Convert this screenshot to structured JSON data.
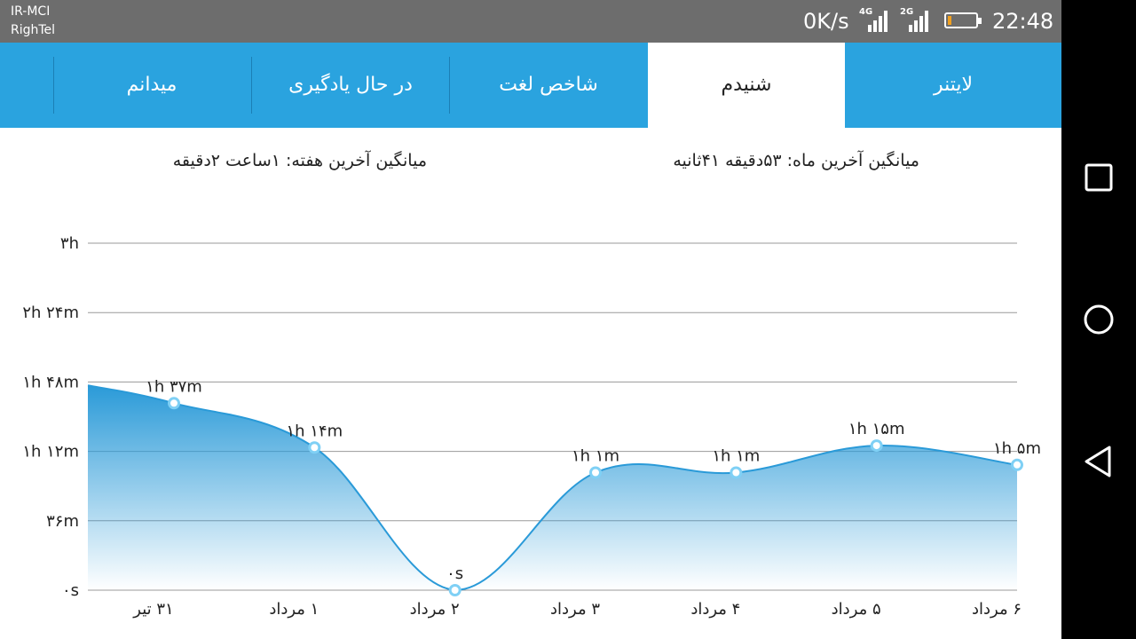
{
  "status_bar": {
    "carrier_1": "IR-MCI",
    "carrier_2": "RighTel",
    "network_speed": "0K/s",
    "signal_1_type": "4G",
    "signal_2_type": "2G",
    "battery_level": 0.12,
    "time": "22:48"
  },
  "tabs": [
    {
      "label": "لایتنر",
      "active": false
    },
    {
      "label": "شنیدم",
      "active": true
    },
    {
      "label": "شاخص لغت",
      "active": false
    },
    {
      "label": "در حال یادگیری",
      "active": false
    },
    {
      "label": "میدانم",
      "active": false
    }
  ],
  "averages": {
    "month": "میانگین آخرین ماه: ۵۳دقیقه  ۴۱ثانیه",
    "week": "میانگین آخرین هفته: ۱ساعت  ۲دقیقه"
  },
  "chart_data": {
    "type": "area",
    "categories": [
      "۳۱ تیر",
      "۱ مرداد",
      "۲ مرداد",
      "۳ مرداد",
      "۴ مرداد",
      "۵ مرداد",
      "۶ مرداد"
    ],
    "values_minutes": [
      97,
      74,
      0,
      61,
      61,
      75,
      65
    ],
    "data_labels": [
      "۱h ۳۷m",
      "۱h ۱۴m",
      "۰s",
      "۱h ۱m",
      "۱h ۱m",
      "۱h ۱۵m",
      "۱h ۵m"
    ],
    "y_ticks_minutes": [
      0,
      36,
      72,
      108,
      144,
      180
    ],
    "y_tick_labels": [
      "۰s",
      "۳۶m",
      "۱h ۱۲m",
      "۱h ۴۸m",
      "۲h ۲۴m",
      "۳h"
    ],
    "ylim": [
      0,
      180
    ],
    "grid": true,
    "line_color": "#2a9ad8",
    "fill_color": "#2a9ad8"
  },
  "colors": {
    "accent": "#2aa3df",
    "status_bar": "#6d6d6d"
  },
  "nav_icons": [
    "recent-apps-icon",
    "home-icon",
    "back-icon"
  ]
}
